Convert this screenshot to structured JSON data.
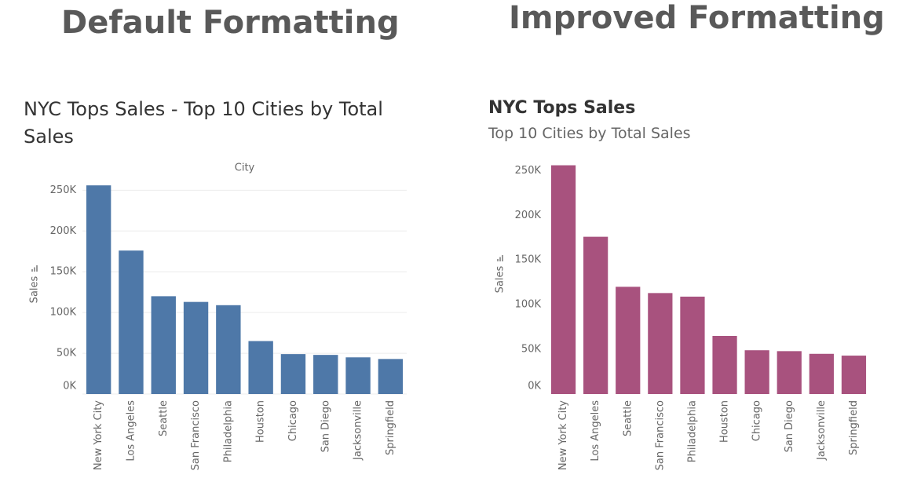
{
  "chart_data": [
    {
      "type": "bar",
      "heading": "Default Formatting",
      "title": "NYC Tops Sales - Top 10 Cities by Total Sales",
      "x_label": "City",
      "y_label": "Sales",
      "categories": [
        "New York City",
        "Los Angeles",
        "Seattle",
        "San Francisco",
        "Philadelphia",
        "Houston",
        "Chicago",
        "San Diego",
        "Jacksonville",
        "Springfield"
      ],
      "values": [
        256000,
        176000,
        120000,
        113000,
        109000,
        65000,
        49000,
        48000,
        45000,
        43000
      ],
      "color": "#4e78a8",
      "grid": true,
      "ylim": [
        0,
        260000
      ],
      "yticks": [
        {
          "value": 0,
          "label": "0K"
        },
        {
          "value": 50000,
          "label": "50K"
        },
        {
          "value": 100000,
          "label": "100K"
        },
        {
          "value": 150000,
          "label": "150K"
        },
        {
          "value": 200000,
          "label": "200K"
        },
        {
          "value": 250000,
          "label": "250K"
        }
      ]
    },
    {
      "type": "bar",
      "heading": "Improved Formatting",
      "title": "NYC Tops Sales",
      "subtitle": "Top 10 Cities by Total Sales",
      "y_label": "Sales",
      "categories": [
        "New York City",
        "Los Angeles",
        "Seattle",
        "San Francisco",
        "Philadelphia",
        "Houston",
        "Chicago",
        "San Diego",
        "Jacksonville",
        "Springfield"
      ],
      "values": [
        256000,
        176000,
        120000,
        113000,
        109000,
        65000,
        49000,
        48000,
        45000,
        43000
      ],
      "color": "#a8527e",
      "grid": false,
      "ylim": [
        0,
        260000
      ],
      "yticks": [
        {
          "value": 0,
          "label": "0K"
        },
        {
          "value": 50000,
          "label": "50K"
        },
        {
          "value": 100000,
          "label": "100K"
        },
        {
          "value": 150000,
          "label": "150K"
        },
        {
          "value": 200000,
          "label": "200K"
        },
        {
          "value": 250000,
          "label": "250K"
        }
      ]
    }
  ]
}
